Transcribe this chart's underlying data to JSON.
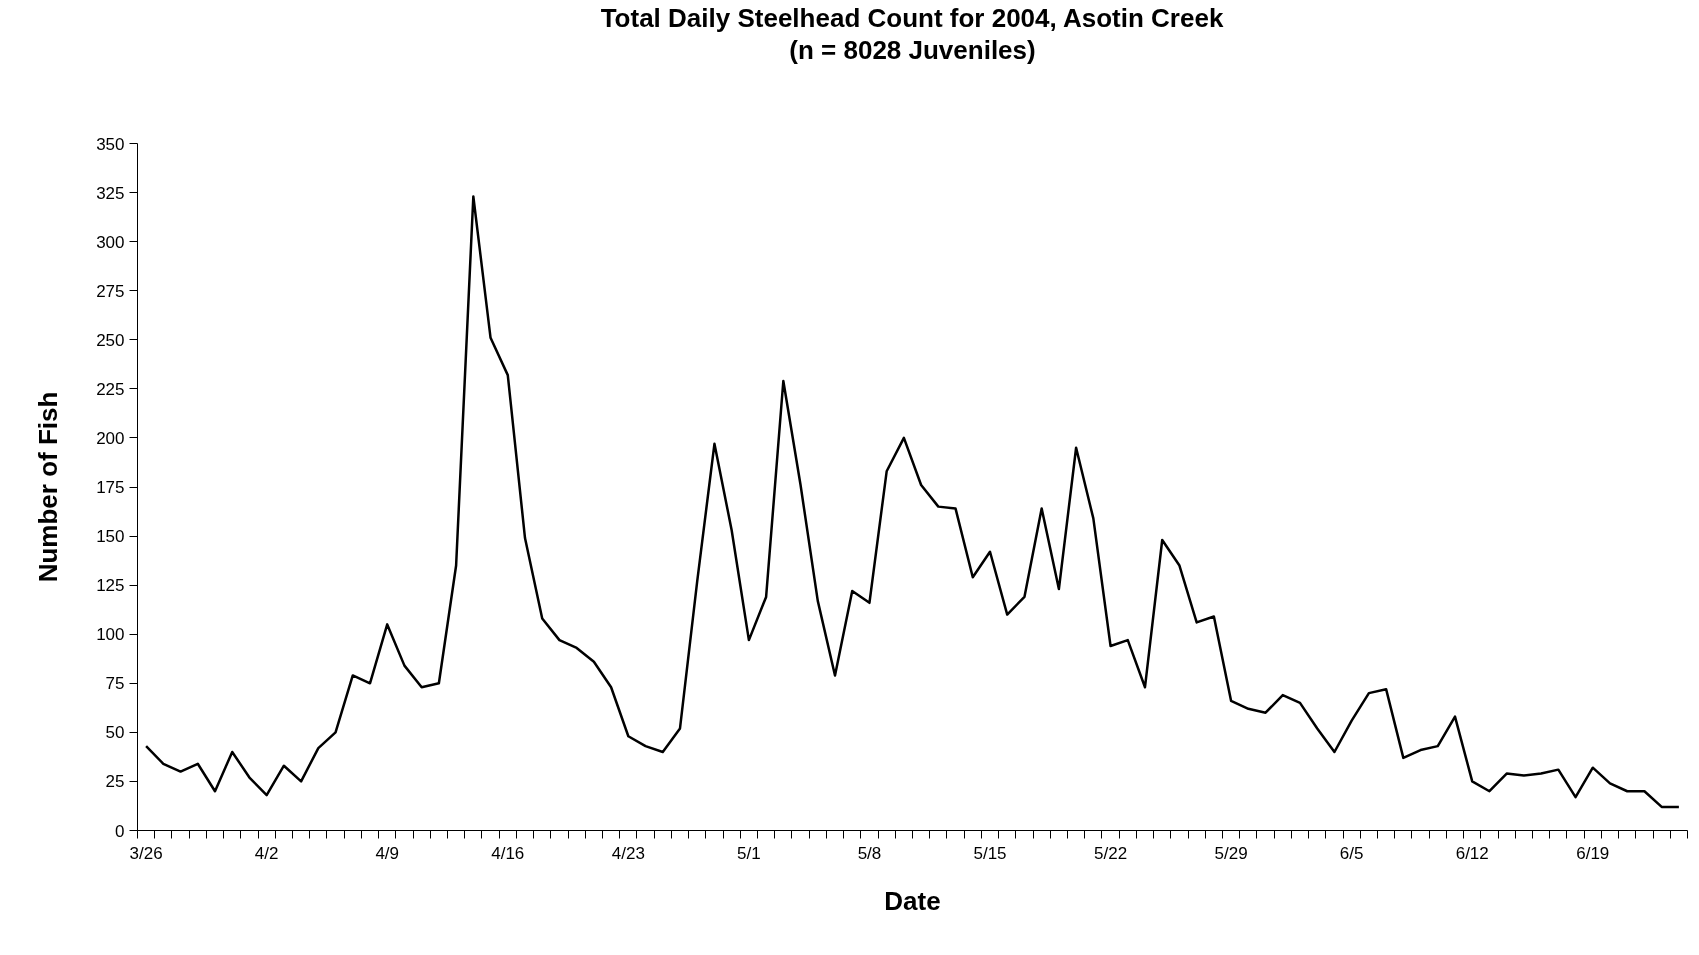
{
  "chart_data": {
    "type": "line",
    "title": "Total Daily Steelhead Count for 2004, Asotin Creek",
    "subtitle": "(n = 8028 Juveniles)",
    "xlabel": "Date",
    "ylabel": "Number of Fish",
    "categories": [
      "3/26",
      null,
      null,
      null,
      null,
      null,
      null,
      "4/2",
      null,
      null,
      null,
      null,
      null,
      null,
      "4/9",
      null,
      null,
      null,
      null,
      null,
      null,
      "4/16",
      null,
      null,
      null,
      null,
      null,
      null,
      "4/23",
      null,
      null,
      null,
      null,
      null,
      null,
      "5/1",
      null,
      null,
      null,
      null,
      null,
      null,
      "5/8",
      null,
      null,
      null,
      null,
      null,
      null,
      "5/15",
      null,
      null,
      null,
      null,
      null,
      null,
      "5/22",
      null,
      null,
      null,
      null,
      null,
      null,
      "5/29",
      null,
      null,
      null,
      null,
      null,
      null,
      "6/5",
      null,
      null,
      null,
      null,
      null,
      null,
      "6/12",
      null,
      null,
      null,
      null,
      null,
      null,
      "6/19",
      null,
      null,
      null,
      null,
      null
    ],
    "series": [
      {
        "color": "#000000",
        "values": [
          43,
          34,
          30,
          34,
          20,
          40,
          27,
          18,
          33,
          25,
          42,
          50,
          79,
          75,
          105,
          84,
          73,
          75,
          135,
          323,
          251,
          232,
          149,
          108,
          97,
          93,
          86,
          73,
          48,
          43,
          40,
          52,
          127,
          197,
          153,
          97,
          119,
          229,
          176,
          117,
          79,
          122,
          116,
          183,
          200,
          176,
          165,
          164,
          129,
          142,
          110,
          119,
          164,
          123,
          195,
          159,
          94,
          97,
          73,
          148,
          135,
          106,
          109,
          66,
          62,
          60,
          69,
          65,
          52,
          40,
          56,
          70,
          72,
          37,
          41,
          43,
          58,
          25,
          20,
          29,
          28,
          29,
          31,
          17,
          32,
          24,
          20,
          20,
          12,
          12
        ]
      }
    ],
    "ylim": [
      0,
      350
    ],
    "yticks": [
      0,
      25,
      50,
      75,
      100,
      125,
      150,
      175,
      200,
      225,
      250,
      275,
      300,
      325,
      350
    ],
    "grid": false,
    "marker": "none",
    "line_style": "solid"
  }
}
